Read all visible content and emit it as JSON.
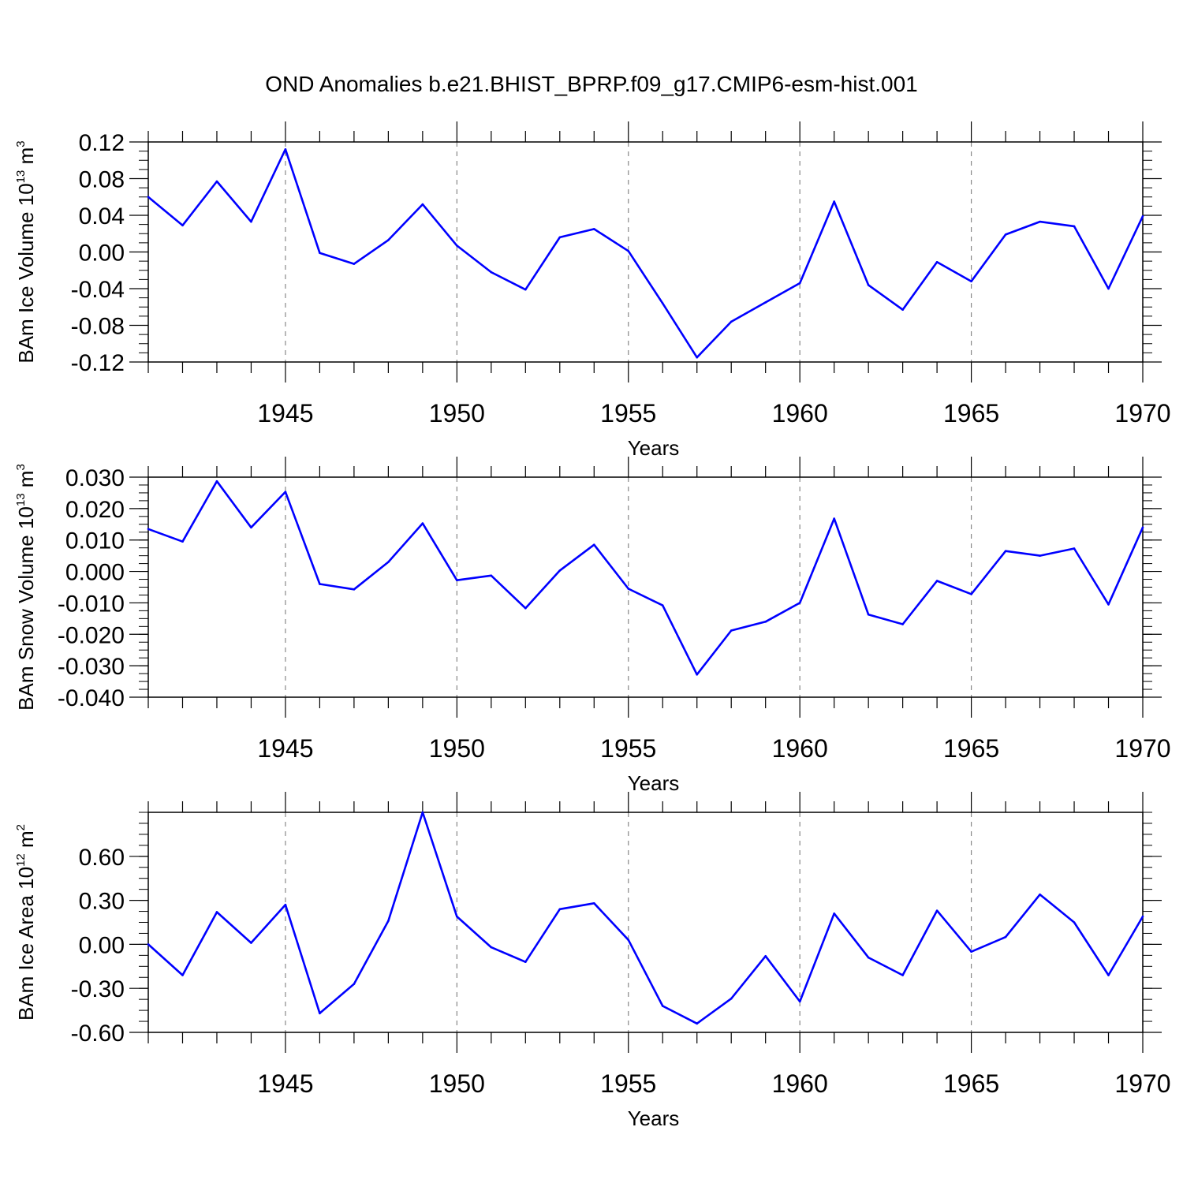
{
  "title": "OND Anomalies b.e21.BHIST_BPRP.f09_g17.CMIP6-esm-hist.001",
  "colors": {
    "series": "#0000ff",
    "axis": "#000000",
    "grid": "#888888"
  },
  "chart_data": [
    {
      "type": "line",
      "ylabel_text": "BAm Ice Volume 10",
      "ylabel_exp": "13",
      "ylabel_unit": " m",
      "ylabel_unit_exp": "3",
      "xlabel": "Years",
      "xlim": [
        1941,
        1970
      ],
      "ylim": [
        -0.12,
        0.12
      ],
      "yticks": [
        -0.12,
        -0.08,
        -0.04,
        0.0,
        0.04,
        0.08,
        0.12
      ],
      "ytick_labels": [
        "-0.12",
        "-0.08",
        "-0.04",
        "0.00",
        "0.04",
        "0.08",
        "0.12"
      ],
      "xticks": [
        1945,
        1950,
        1955,
        1960,
        1965,
        1970
      ],
      "xtick_labels": [
        "1945",
        "1950",
        "1955",
        "1960",
        "1965",
        "1970"
      ],
      "grid": "vertical-dashed",
      "series": [
        {
          "x": [
            1941,
            1942,
            1943,
            1944,
            1945,
            1946,
            1947,
            1948,
            1949,
            1950,
            1951,
            1952,
            1953,
            1954,
            1955,
            1956,
            1957,
            1958,
            1959,
            1960,
            1961,
            1962,
            1963,
            1964,
            1965,
            1966,
            1967,
            1968,
            1969,
            1970
          ],
          "values": [
            0.06,
            0.029,
            0.077,
            0.033,
            0.112,
            -0.001,
            -0.013,
            0.013,
            0.052,
            0.007,
            -0.022,
            -0.041,
            0.016,
            0.025,
            0.001,
            -0.056,
            -0.115,
            -0.076,
            -0.055,
            -0.034,
            0.055,
            -0.036,
            -0.063,
            -0.011,
            -0.032,
            0.019,
            0.033,
            0.028,
            -0.04,
            0.039
          ]
        }
      ]
    },
    {
      "type": "line",
      "ylabel_text": "BAm Snow Volume 10",
      "ylabel_exp": "13",
      "ylabel_unit": " m",
      "ylabel_unit_exp": "3",
      "xlabel": "Years",
      "xlim": [
        1941,
        1970
      ],
      "ylim": [
        -0.04,
        0.03
      ],
      "yticks": [
        -0.04,
        -0.03,
        -0.02,
        -0.01,
        0.0,
        0.01,
        0.02,
        0.03
      ],
      "ytick_labels": [
        "-0.040",
        "-0.030",
        "-0.020",
        "-0.010",
        "0.000",
        "0.010",
        "0.020",
        "0.030"
      ],
      "xticks": [
        1945,
        1950,
        1955,
        1960,
        1965,
        1970
      ],
      "xtick_labels": [
        "1945",
        "1950",
        "1955",
        "1960",
        "1965",
        "1970"
      ],
      "grid": "vertical-dashed",
      "series": [
        {
          "x": [
            1941,
            1942,
            1943,
            1944,
            1945,
            1946,
            1947,
            1948,
            1949,
            1950,
            1951,
            1952,
            1953,
            1954,
            1955,
            1956,
            1957,
            1958,
            1959,
            1960,
            1961,
            1962,
            1963,
            1964,
            1965,
            1966,
            1967,
            1968,
            1969,
            1970
          ],
          "values": [
            0.0135,
            0.0095,
            0.0287,
            0.014,
            0.0253,
            -0.004,
            -0.0057,
            0.003,
            0.0153,
            -0.0028,
            -0.0013,
            -0.0117,
            0.0003,
            0.0085,
            -0.0055,
            -0.0108,
            -0.0328,
            -0.0188,
            -0.016,
            -0.01,
            0.0168,
            -0.0137,
            -0.0168,
            -0.003,
            -0.0072,
            0.0065,
            0.005,
            0.0073,
            -0.0105,
            0.014
          ]
        }
      ]
    },
    {
      "type": "line",
      "ylabel_text": "BAm Ice Area 10",
      "ylabel_exp": "12",
      "ylabel_unit": " m",
      "ylabel_unit_exp": "2",
      "xlabel": "Years",
      "xlim": [
        1941,
        1970
      ],
      "ylim": [
        -0.6,
        0.9
      ],
      "yticks": [
        -0.6,
        -0.3,
        0.0,
        0.3,
        0.6
      ],
      "ytick_labels": [
        "-0.60",
        "-0.30",
        "0.00",
        "0.30",
        "0.60"
      ],
      "xticks": [
        1945,
        1950,
        1955,
        1960,
        1965,
        1970
      ],
      "xtick_labels": [
        "1945",
        "1950",
        "1955",
        "1960",
        "1965",
        "1970"
      ],
      "grid": "vertical-dashed",
      "series": [
        {
          "x": [
            1941,
            1942,
            1943,
            1944,
            1945,
            1946,
            1947,
            1948,
            1949,
            1950,
            1951,
            1952,
            1953,
            1954,
            1955,
            1956,
            1957,
            1958,
            1959,
            1960,
            1961,
            1962,
            1963,
            1964,
            1965,
            1966,
            1967,
            1968,
            1969,
            1970
          ],
          "values": [
            0.0,
            -0.21,
            0.22,
            0.01,
            0.27,
            -0.47,
            -0.27,
            0.16,
            0.9,
            0.19,
            -0.02,
            -0.12,
            0.24,
            0.28,
            0.03,
            -0.42,
            -0.54,
            -0.37,
            -0.08,
            -0.39,
            0.21,
            -0.09,
            -0.21,
            0.23,
            -0.05,
            0.05,
            0.34,
            0.15,
            -0.21,
            0.19
          ]
        }
      ]
    }
  ]
}
